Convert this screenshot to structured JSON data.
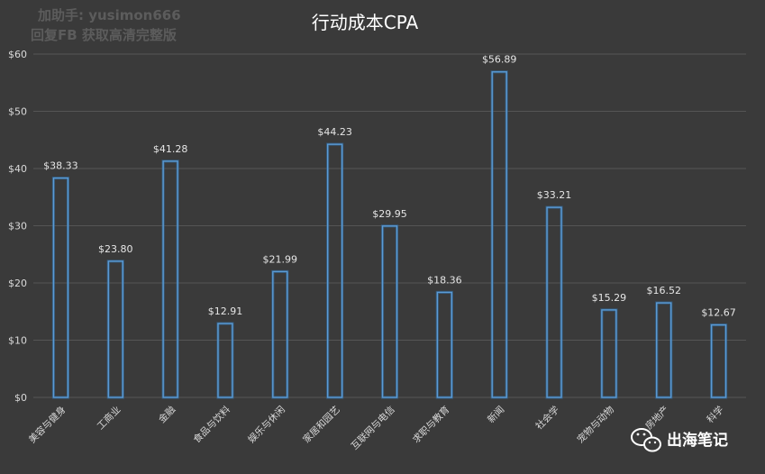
{
  "watermark": {
    "line1": "加助手: yusimon666",
    "line2": "回复FB 获取高清完整版"
  },
  "brand": {
    "icon": "wechat-icon",
    "name": "出海笔记"
  },
  "colors": {
    "background": "#3a3a3a",
    "bar_stroke": "#5b9bd5",
    "grid": "#555555"
  },
  "chart_data": {
    "type": "bar",
    "title": "行动成本CPA",
    "xlabel": "",
    "ylabel": "",
    "ylim": [
      0,
      60
    ],
    "yticks": [
      0,
      10,
      20,
      30,
      40,
      50,
      60
    ],
    "ytick_labels": [
      "$0",
      "$10",
      "$20",
      "$30",
      "$40",
      "$50",
      "$60"
    ],
    "grid": true,
    "legend": "none",
    "categories": [
      "美容与健身",
      "工商业",
      "金融",
      "食品与饮料",
      "娱乐与休闲",
      "家居和园艺",
      "互联网与电信",
      "求职与教育",
      "新闻",
      "社会学",
      "宠物与动物",
      "房地产",
      "科学"
    ],
    "values": [
      38.33,
      23.8,
      41.28,
      12.91,
      21.99,
      44.23,
      29.95,
      18.36,
      56.89,
      33.21,
      15.29,
      16.52,
      12.67
    ],
    "data_labels": [
      "$38.33",
      "$23.80",
      "$41.28",
      "$12.91",
      "$21.99",
      "$44.23",
      "$29.95",
      "$18.36",
      "$56.89",
      "$33.21",
      "$15.29",
      "$16.52",
      "$12.67"
    ]
  }
}
